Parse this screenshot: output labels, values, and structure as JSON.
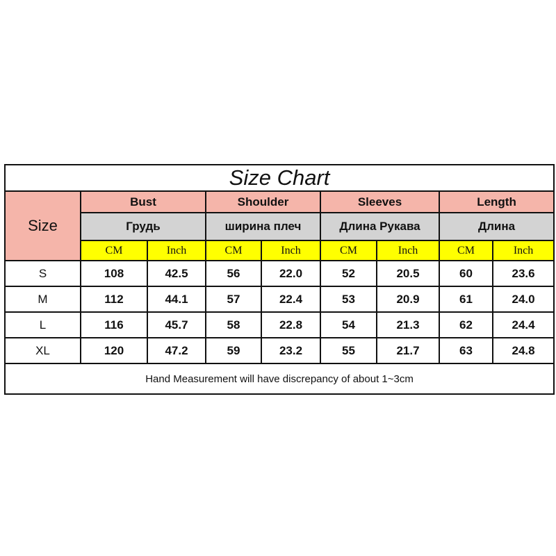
{
  "title": "Size Chart",
  "size_label": "Size",
  "groups": [
    {
      "en": "Bust",
      "ru": "Грудь"
    },
    {
      "en": "Shoulder",
      "ru": "ширина плеч"
    },
    {
      "en": "Sleeves",
      "ru": "Длина Рукава"
    },
    {
      "en": "Length",
      "ru": "Длина"
    }
  ],
  "units": {
    "cm": "CM",
    "inch": "Inch"
  },
  "colors": {
    "header_pink": "#f5b5aa",
    "header_gray": "#d3d3d3",
    "unit_yellow": "#ffff00"
  },
  "rows": [
    {
      "size": "S",
      "v": [
        "108",
        "42.5",
        "56",
        "22.0",
        "52",
        "20.5",
        "60",
        "23.6"
      ]
    },
    {
      "size": "M",
      "v": [
        "112",
        "44.1",
        "57",
        "22.4",
        "53",
        "20.9",
        "61",
        "24.0"
      ]
    },
    {
      "size": "L",
      "v": [
        "116",
        "45.7",
        "58",
        "22.8",
        "54",
        "21.3",
        "62",
        "24.4"
      ]
    },
    {
      "size": "XL",
      "v": [
        "120",
        "47.2",
        "59",
        "23.2",
        "55",
        "21.7",
        "63",
        "24.8"
      ]
    }
  ],
  "note": "Hand Measurement will have discrepancy of about 1~3cm"
}
